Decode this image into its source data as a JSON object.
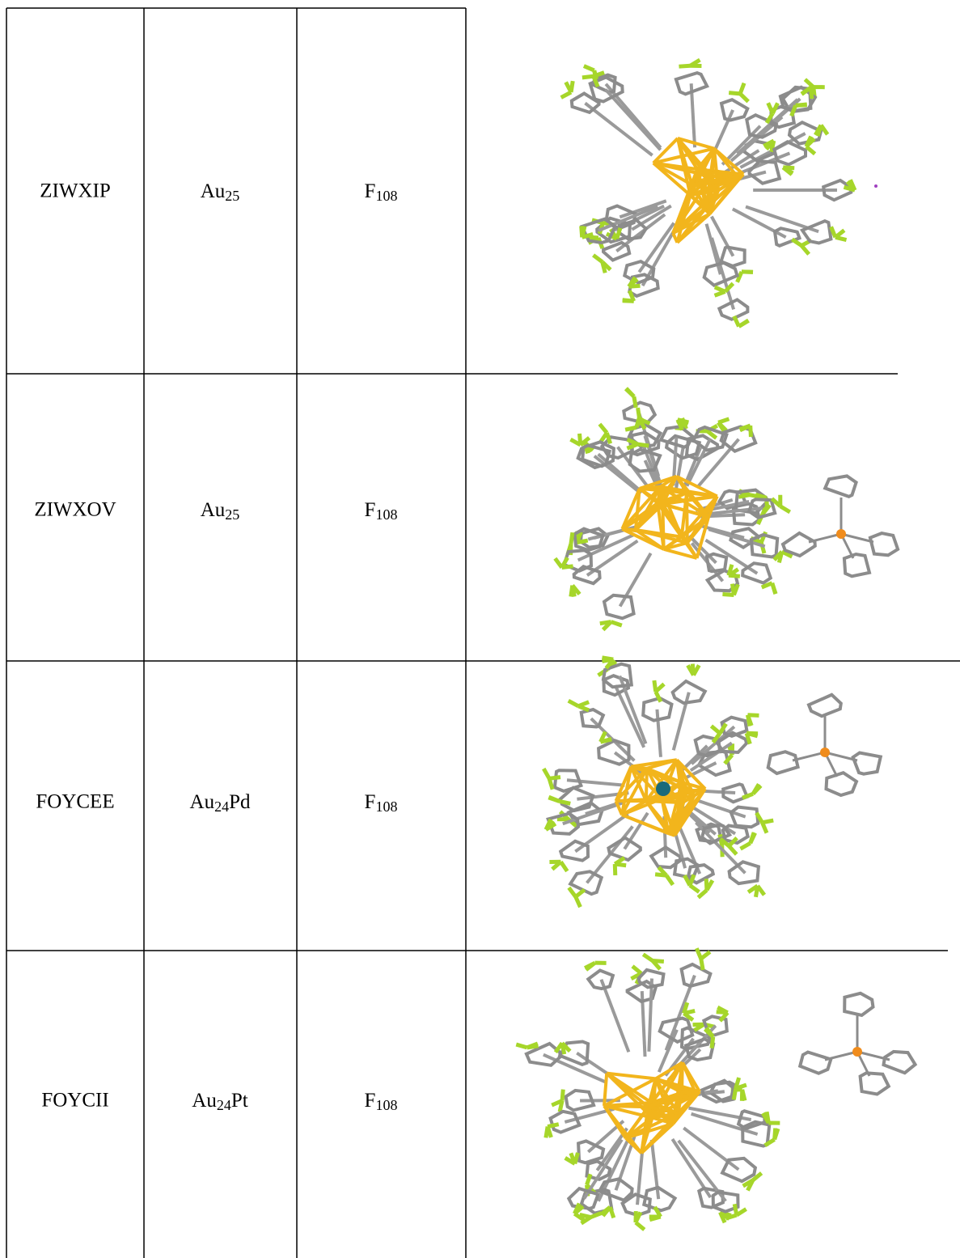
{
  "table": {
    "rows": [
      {
        "code": "ZIWXIP",
        "metal": [
          "Au",
          "25"
        ],
        "ligand": [
          "F",
          "108"
        ]
      },
      {
        "code": "ZIWXOV",
        "metal": [
          "Au",
          "25"
        ],
        "ligand": [
          "F",
          "108"
        ]
      },
      {
        "code": "FOYCEE",
        "metal": [
          "Au",
          "24",
          "Pd"
        ],
        "ligand": [
          "F",
          "108"
        ]
      },
      {
        "code": "FOYCII",
        "metal": [
          "Au",
          "24",
          "Pt"
        ],
        "ligand": [
          "F",
          "108"
        ]
      }
    ]
  }
}
